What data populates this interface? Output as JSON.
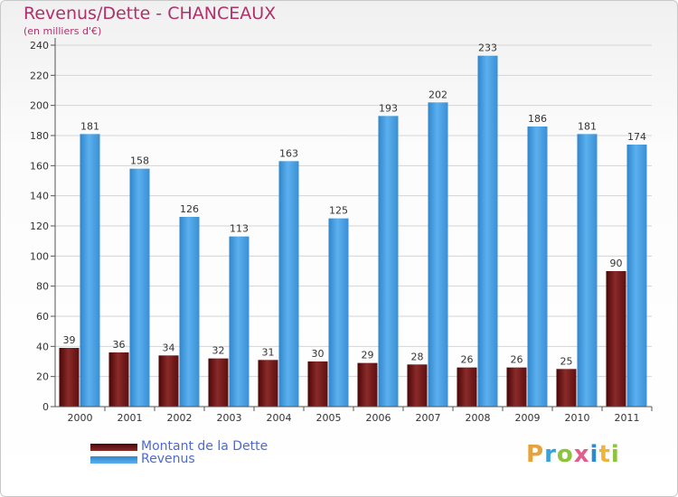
{
  "chart_data": {
    "type": "bar",
    "title": "Revenus/Dette - CHANCEAUX",
    "subtitle": "(en milliers d'€)",
    "categories": [
      "2000",
      "2001",
      "2002",
      "2003",
      "2004",
      "2005",
      "2006",
      "2007",
      "2008",
      "2009",
      "2010",
      "2011"
    ],
    "series": [
      {
        "name": "Montant de la Dette",
        "color": "#7a1a1a",
        "values": [
          39,
          36,
          34,
          32,
          31,
          30,
          29,
          28,
          26,
          26,
          25,
          90
        ]
      },
      {
        "name": "Revenus",
        "color": "#4a9fe0",
        "values": [
          181,
          158,
          126,
          113,
          163,
          125,
          193,
          202,
          233,
          186,
          181,
          174
        ]
      }
    ],
    "ylim": [
      0,
      240
    ],
    "yticks": [
      0,
      20,
      40,
      60,
      80,
      100,
      120,
      140,
      160,
      180,
      200,
      220,
      240
    ],
    "grid": true,
    "legend_position": "bottom-left"
  },
  "logo": {
    "text": "Proxiti",
    "letter_colors": [
      "#e8a23a",
      "#3aa0d8",
      "#8cc43c",
      "#e35d8c",
      "#2c8ad0",
      "#f0b43c",
      "#8cc43c"
    ]
  }
}
